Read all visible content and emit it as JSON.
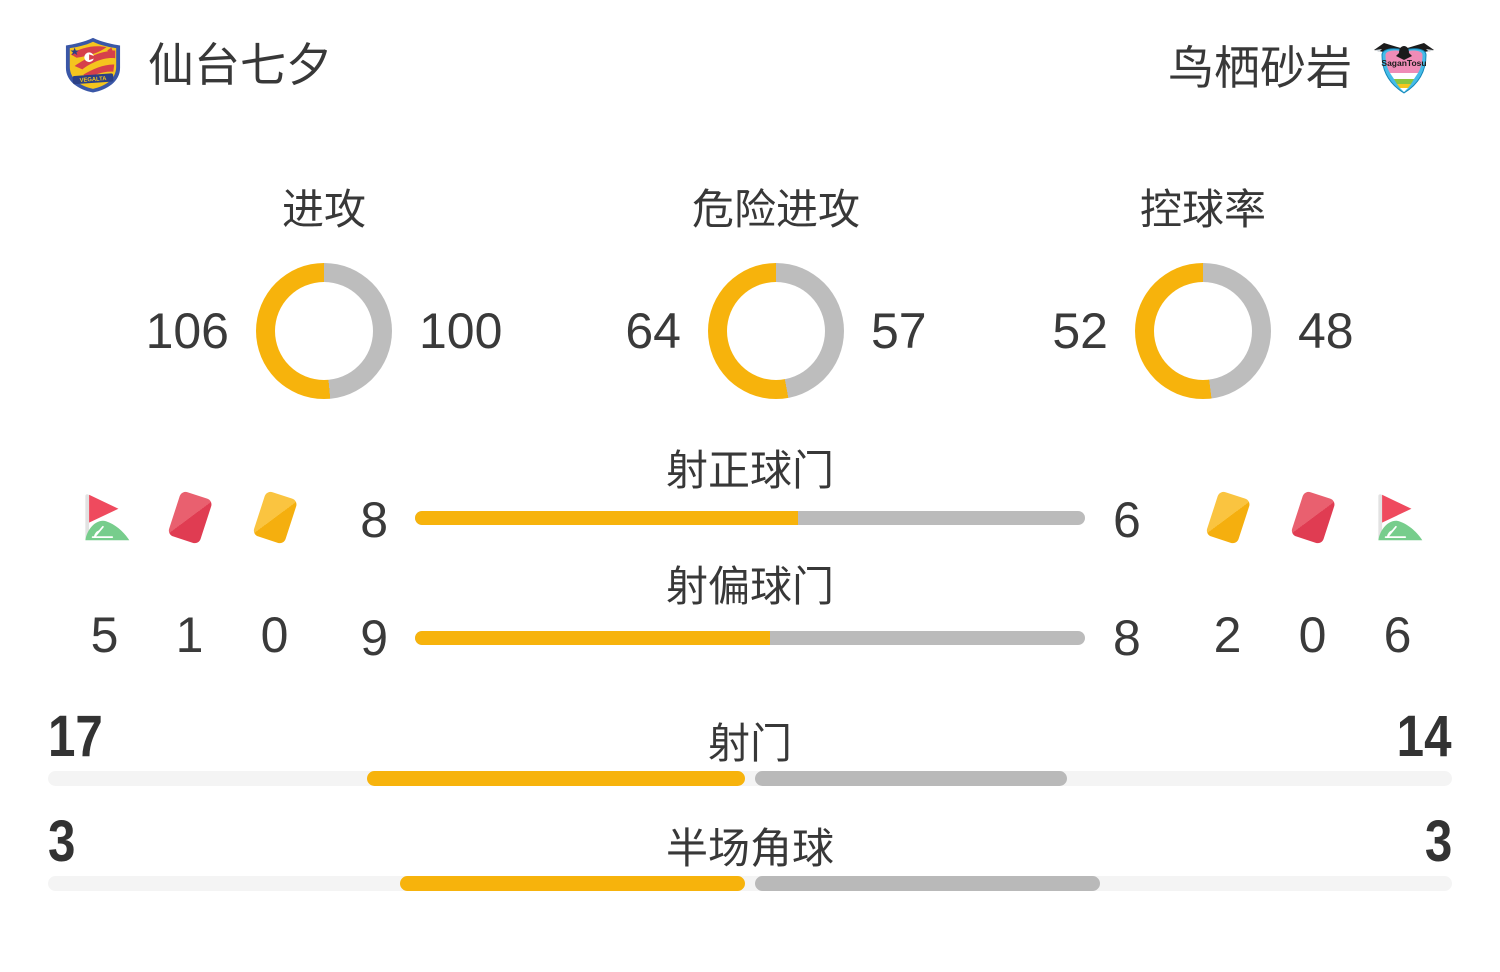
{
  "teams": {
    "home": {
      "name": "仙台七夕",
      "logo_icon": "vegalta-sendai-crest"
    },
    "away": {
      "name": "鸟栖砂岩",
      "logo_icon": "sagan-tosu-crest"
    }
  },
  "chart_data": [
    {
      "type": "donut",
      "title": "进攻",
      "series": [
        {
          "name": "仙台七夕",
          "value": 106
        },
        {
          "name": "鸟栖砂岩",
          "value": 100
        }
      ],
      "colors": [
        "#F7B30C",
        "#BDBDBD"
      ],
      "legend_position": "sides"
    },
    {
      "type": "donut",
      "title": "危险进攻",
      "series": [
        {
          "name": "仙台七夕",
          "value": 64
        },
        {
          "name": "鸟栖砂岩",
          "value": 57
        }
      ],
      "colors": [
        "#F7B30C",
        "#BDBDBD"
      ],
      "legend_position": "sides"
    },
    {
      "type": "donut",
      "title": "控球率",
      "series": [
        {
          "name": "仙台七夕",
          "value": 52
        },
        {
          "name": "鸟栖砂岩",
          "value": 48
        }
      ],
      "colors": [
        "#F7B30C",
        "#BDBDBD"
      ],
      "legend_position": "sides"
    },
    {
      "type": "bar",
      "title": "射正球门",
      "series": [
        {
          "name": "仙台七夕",
          "value": 8
        },
        {
          "name": "鸟栖砂岩",
          "value": 6
        }
      ],
      "colors": [
        "#F7B30C",
        "#BBBBBB"
      ]
    },
    {
      "type": "bar",
      "title": "射偏球门",
      "series": [
        {
          "name": "仙台七夕",
          "value": 9
        },
        {
          "name": "鸟栖砂岩",
          "value": 8
        }
      ],
      "colors": [
        "#F7B30C",
        "#BBBBBB"
      ]
    },
    {
      "type": "bar",
      "title": "射门",
      "series": [
        {
          "name": "仙台七夕",
          "value": 17
        },
        {
          "name": "鸟栖砂岩",
          "value": 14
        }
      ],
      "colors": [
        "#F7B30C",
        "#B9B9B9"
      ]
    },
    {
      "type": "bar",
      "title": "半场角球",
      "series": [
        {
          "name": "仙台七夕",
          "value": 3
        },
        {
          "name": "鸟栖砂岩",
          "value": 3
        }
      ],
      "colors": [
        "#F7B30C",
        "#B9B9B9"
      ]
    }
  ],
  "side_stats": {
    "home": [
      {
        "icon": "corner-flag",
        "value": 5
      },
      {
        "icon": "red-card",
        "value": 1
      },
      {
        "icon": "yellow-card",
        "value": 0
      }
    ],
    "away": [
      {
        "icon": "yellow-card",
        "value": 2
      },
      {
        "icon": "red-card",
        "value": 0
      },
      {
        "icon": "corner-flag",
        "value": 6
      }
    ]
  },
  "colors": {
    "home": "#F7B30C",
    "away_donut": "#BDBDBD",
    "away_bar": "#BBBBBB",
    "away_bottom": "#B9B9B9",
    "track": "#F4F4F4",
    "text": "#383838",
    "red_card": "#E2455A",
    "yellow_card": "#F6B214",
    "flag_red": "#EF4A5E",
    "grass_green": "#77CD8C"
  }
}
